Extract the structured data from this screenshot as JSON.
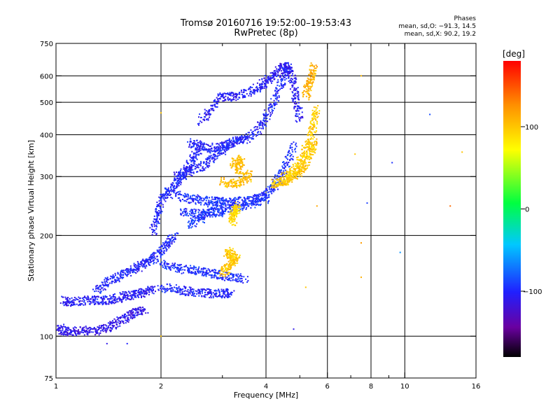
{
  "header": {
    "title_line1": "Tromsø 20160716 19:52:00–19:53:43",
    "title_line2": "RwPretec (8p)"
  },
  "phases": {
    "title": "Phases",
    "o_mode": "mean, sd,O: −91.3, 14.5",
    "x_mode": "mean, sd,X:  90.2, 19.2"
  },
  "colorbar": {
    "unit": "[deg]",
    "ticks": [
      {
        "value": 100,
        "label": "100"
      },
      {
        "value": 0,
        "label": "0"
      },
      {
        "value": -100,
        "label": "−100"
      }
    ],
    "range": [
      -180,
      180
    ]
  },
  "chart_data": {
    "type": "scatter",
    "title": "Tromsø 20160716 19:52:00–19:53:43",
    "subtitle": "RwPretec (8p)",
    "xlabel": "Frequency [MHz]",
    "ylabel": "Stationary phase Virtual Height [km]",
    "xscale": "log",
    "yscale": "log",
    "xlim": [
      1,
      16
    ],
    "ylim": [
      75,
      750
    ],
    "xticks": [
      {
        "value": 1,
        "label": "1"
      },
      {
        "value": 2,
        "label": "2"
      },
      {
        "value": 4,
        "label": "4"
      },
      {
        "value": 6,
        "label": "6"
      },
      {
        "value": 8,
        "label": "8"
      },
      {
        "value": 10,
        "label": "10"
      },
      {
        "value": 16,
        "label": "16"
      }
    ],
    "xminor": [
      3,
      5,
      7,
      9
    ],
    "yticks": [
      {
        "value": 75,
        "label": "75"
      },
      {
        "value": 100,
        "label": "100"
      },
      {
        "value": 200,
        "label": "200"
      },
      {
        "value": 300,
        "label": "300"
      },
      {
        "value": 400,
        "label": "400"
      },
      {
        "value": 500,
        "label": "500"
      },
      {
        "value": 600,
        "label": "600"
      },
      {
        "value": 750,
        "label": "750"
      }
    ],
    "grid": true,
    "color_by": "phase (deg)",
    "trace_groups": [
      {
        "phase": -110,
        "points": [
          [
            1.0,
            108
          ],
          [
            1.05,
            104
          ],
          [
            1.1,
            103
          ],
          [
            1.2,
            104
          ],
          [
            1.3,
            104
          ],
          [
            1.4,
            106
          ],
          [
            1.5,
            110
          ],
          [
            1.6,
            114
          ],
          [
            1.7,
            118
          ],
          [
            1.8,
            120
          ]
        ]
      },
      {
        "phase": -105,
        "points": [
          [
            1.05,
            128
          ],
          [
            1.1,
            126
          ],
          [
            1.2,
            128
          ],
          [
            1.3,
            128
          ],
          [
            1.4,
            128
          ],
          [
            1.5,
            130
          ],
          [
            1.6,
            132
          ],
          [
            1.7,
            133
          ],
          [
            1.8,
            135
          ],
          [
            1.9,
            138
          ]
        ]
      },
      {
        "phase": -100,
        "points": [
          [
            1.3,
            135
          ],
          [
            1.4,
            145
          ],
          [
            1.5,
            150
          ],
          [
            1.6,
            155
          ],
          [
            1.7,
            160
          ],
          [
            1.8,
            165
          ],
          [
            1.9,
            170
          ],
          [
            2.0,
            180
          ],
          [
            2.1,
            190
          ],
          [
            2.2,
            200
          ]
        ]
      },
      {
        "phase": -100,
        "points": [
          [
            2.0,
            140
          ],
          [
            2.2,
            138
          ],
          [
            2.4,
            136
          ],
          [
            2.6,
            135
          ],
          [
            2.8,
            134
          ],
          [
            3.0,
            134
          ],
          [
            3.2,
            135
          ]
        ]
      },
      {
        "phase": -95,
        "points": [
          [
            2.0,
            165
          ],
          [
            2.2,
            160
          ],
          [
            2.4,
            158
          ],
          [
            2.6,
            156
          ],
          [
            2.8,
            154
          ],
          [
            3.0,
            152
          ],
          [
            3.2,
            150
          ],
          [
            3.5,
            148
          ]
        ]
      },
      {
        "phase": -100,
        "points": [
          [
            1.9,
            205
          ],
          [
            1.95,
            230
          ],
          [
            2.0,
            255
          ],
          [
            2.1,
            270
          ],
          [
            2.2,
            285
          ],
          [
            2.3,
            300
          ],
          [
            2.4,
            320
          ],
          [
            2.5,
            345
          ],
          [
            2.6,
            370
          ]
        ]
      },
      {
        "phase": -95,
        "points": [
          [
            2.2,
            265
          ],
          [
            2.4,
            258
          ],
          [
            2.6,
            255
          ],
          [
            2.8,
            253
          ],
          [
            3.0,
            252
          ],
          [
            3.2,
            252
          ],
          [
            3.5,
            254
          ],
          [
            3.8,
            258
          ],
          [
            4.0,
            265
          ],
          [
            4.2,
            280
          ],
          [
            4.4,
            300
          ],
          [
            4.6,
            330
          ],
          [
            4.8,
            380
          ]
        ]
      },
      {
        "phase": -95,
        "points": [
          [
            2.3,
            235
          ],
          [
            2.5,
            232
          ],
          [
            2.7,
            232
          ],
          [
            2.9,
            234
          ],
          [
            3.1,
            238
          ],
          [
            3.4,
            244
          ],
          [
            3.7,
            250
          ],
          [
            4.0,
            258
          ]
        ]
      },
      {
        "phase": -100,
        "points": [
          [
            2.4,
            380
          ],
          [
            2.6,
            370
          ],
          [
            2.8,
            365
          ],
          [
            3.0,
            368
          ],
          [
            3.2,
            375
          ],
          [
            3.5,
            390
          ],
          [
            3.8,
            415
          ],
          [
            4.0,
            450
          ],
          [
            4.2,
            500
          ],
          [
            4.4,
            560
          ],
          [
            4.6,
            620
          ]
        ]
      },
      {
        "phase": -105,
        "points": [
          [
            2.6,
            440
          ],
          [
            2.8,
            480
          ],
          [
            3.0,
            520
          ],
          [
            3.2,
            520
          ],
          [
            3.5,
            530
          ],
          [
            3.8,
            555
          ],
          [
            4.0,
            575
          ],
          [
            4.2,
            600
          ],
          [
            4.4,
            630
          ],
          [
            4.6,
            640
          ],
          [
            4.7,
            620
          ],
          [
            4.8,
            560
          ],
          [
            4.9,
            500
          ],
          [
            5.0,
            440
          ]
        ]
      },
      {
        "phase": -100,
        "points": [
          [
            2.2,
            300
          ],
          [
            2.4,
            310
          ],
          [
            2.6,
            320
          ],
          [
            2.8,
            340
          ],
          [
            3.0,
            360
          ],
          [
            3.2,
            380
          ],
          [
            3.5,
            390
          ]
        ]
      },
      {
        "phase": -90,
        "points": [
          [
            2.4,
            215
          ],
          [
            2.6,
            225
          ],
          [
            2.8,
            240
          ],
          [
            3.0,
            255
          ]
        ]
      },
      {
        "phase": 100,
        "points": [
          [
            4.2,
            285
          ],
          [
            4.4,
            288
          ],
          [
            4.6,
            292
          ],
          [
            4.8,
            300
          ],
          [
            5.0,
            310
          ],
          [
            5.2,
            330
          ],
          [
            5.4,
            360
          ],
          [
            5.5,
            380
          ]
        ]
      },
      {
        "phase": 95,
        "points": [
          [
            4.5,
            300
          ],
          [
            4.8,
            310
          ],
          [
            5.0,
            330
          ],
          [
            5.2,
            360
          ],
          [
            5.4,
            400
          ],
          [
            5.5,
            440
          ],
          [
            5.6,
            480
          ]
        ]
      },
      {
        "phase": 105,
        "points": [
          [
            3.0,
            290
          ],
          [
            3.2,
            285
          ],
          [
            3.4,
            290
          ],
          [
            3.6,
            300
          ],
          [
            3.2,
            330
          ],
          [
            3.4,
            340
          ],
          [
            3.3,
            310
          ]
        ]
      },
      {
        "phase": 100,
        "points": [
          [
            3.0,
            155
          ],
          [
            3.1,
            160
          ],
          [
            3.2,
            165
          ],
          [
            3.3,
            170
          ],
          [
            3.1,
            175
          ],
          [
            3.2,
            180
          ]
        ]
      },
      {
        "phase": 110,
        "points": [
          [
            5.2,
            520
          ],
          [
            5.3,
            560
          ],
          [
            5.4,
            600
          ],
          [
            5.5,
            640
          ]
        ]
      },
      {
        "phase": 90,
        "points": [
          [
            3.2,
            225
          ],
          [
            3.25,
            235
          ],
          [
            3.3,
            245
          ],
          [
            3.2,
            215
          ]
        ]
      }
    ],
    "isolated_points": [
      {
        "x": 7.5,
        "y": 600,
        "phase": 105
      },
      {
        "x": 11.8,
        "y": 460,
        "phase": -85
      },
      {
        "x": 13.5,
        "y": 245,
        "phase": 140
      },
      {
        "x": 9.2,
        "y": 330,
        "phase": -95
      },
      {
        "x": 7.8,
        "y": 250,
        "phase": -90
      },
      {
        "x": 9.7,
        "y": 178,
        "phase": -60
      },
      {
        "x": 7.5,
        "y": 190,
        "phase": 120
      },
      {
        "x": 7.5,
        "y": 150,
        "phase": 110
      },
      {
        "x": 7.2,
        "y": 350,
        "phase": 100
      },
      {
        "x": 5.6,
        "y": 245,
        "phase": 115
      },
      {
        "x": 1.4,
        "y": 95,
        "phase": -110
      },
      {
        "x": 1.6,
        "y": 95,
        "phase": -100
      },
      {
        "x": 4.8,
        "y": 105,
        "phase": -110
      },
      {
        "x": 5.2,
        "y": 140,
        "phase": 100
      },
      {
        "x": 14.6,
        "y": 355,
        "phase": 100
      },
      {
        "x": 2.0,
        "y": 465,
        "phase": 100
      },
      {
        "x": 2.0,
        "y": 100,
        "phase": 100
      }
    ]
  }
}
